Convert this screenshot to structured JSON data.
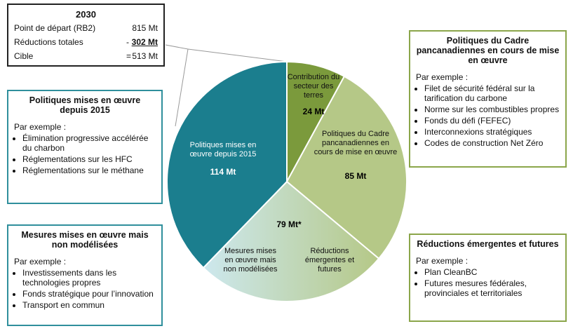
{
  "summary": {
    "title": "2030",
    "rows": [
      {
        "label": "Point de départ (RB2)",
        "value": "815 Mt"
      },
      {
        "label": "Réductions totales",
        "sign": "-",
        "value": "302 Mt"
      },
      {
        "label": "Cible",
        "sign": "=",
        "value": "513 Mt"
      }
    ]
  },
  "boxes": [
    {
      "title": "Politiques mises en œuvre depuis 2015",
      "intro": "Par exemple :",
      "items": [
        "Élimination progressive accélérée du charbon",
        "Réglementations sur les HFC",
        "Réglementations sur le méthane"
      ]
    },
    {
      "title": "Mesures mises en œuvre mais non modélisées",
      "intro": "Par exemple :",
      "items": [
        "Investissements dans les technologies propres",
        "Fonds stratégique pour l’innovation",
        "Transport en commun"
      ]
    },
    {
      "title": "Politiques du Cadre pancanadiennes en cours de mise en œuvre",
      "intro": "Par exemple :",
      "items": [
        "Filet de sécurité fédéral sur la tarification du carbone",
        "Norme sur les combustibles propres",
        "Fonds du défi (FEFEC)",
        "Interconnexions stratégiques",
        "Codes de construction Net Zéro"
      ]
    },
    {
      "title": "Réductions émergentes et futures",
      "intro": "Par exemple :",
      "items": [
        "Plan CleanBC",
        "Futures mesures fédérales, provinciales et territoriales"
      ]
    }
  ],
  "chart_data": {
    "type": "pie",
    "categories": [
      "Contribution du secteur des terres",
      "Politiques du Cadre pancanadiennes en cours de mise en œuvre",
      null,
      "Politiques mises en œuvre depuis 2015"
    ],
    "values": [
      24,
      85,
      79,
      114
    ],
    "value_labels": [
      "24 Mt",
      "85 Mt",
      "79 Mt*",
      "114 Mt"
    ],
    "slice_notes": [
      "Mesures mises en œuvre mais non modélisées",
      "Réductions émergentes et futures"
    ],
    "colors": [
      "#7b9a3c",
      "#b5c887",
      "#cde8ee",
      "#1b7e8e"
    ]
  }
}
